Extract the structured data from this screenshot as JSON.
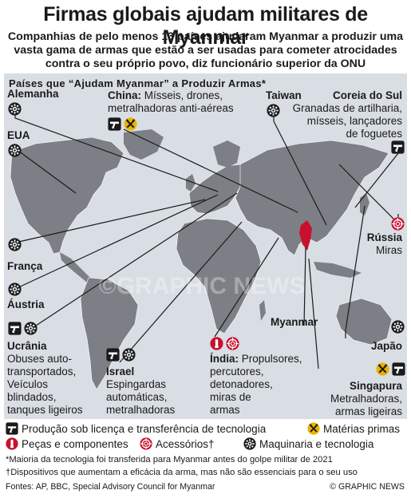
{
  "header": {
    "title": "Firmas globais ajudam militares de Myanmar",
    "subtitle": "Companhias de pelo menos 13 países ajudaram Myanmar a produzir uma vasta gama de armas que estão a ser usadas para cometer atrocidades contra o seu próprio povo, diz funcionário superior da ONU"
  },
  "map": {
    "heading": "Países que “Ajudam Myanmar” a Produzir Armas*",
    "watermark": "©GRAPHIC NEWS",
    "colors": {
      "land": "#7c7f85",
      "sea": "#d9dde4",
      "lines": "#1a1a1a",
      "myanmar": "#c8102e",
      "ammo": "#c8102e",
      "raw": "#e8b400"
    },
    "countries": [
      {
        "id": "alemanha",
        "name": "Alemanha",
        "detail": [],
        "icons": [
          "machinery-icon"
        ]
      },
      {
        "id": "eua",
        "name": "EUA",
        "detail": [],
        "icons": [
          "machinery-icon"
        ]
      },
      {
        "id": "franca",
        "name": "França",
        "detail": [],
        "icons": [
          "machinery-icon"
        ]
      },
      {
        "id": "austria",
        "name": "Áustria",
        "detail": [],
        "icons": [
          "machinery-icon"
        ]
      },
      {
        "id": "ucrania",
        "name": "Ucrânia",
        "detail": [
          "Obuses auto-",
          "transportados,",
          "Veículos",
          "blindados,",
          "tanques ligeiros"
        ],
        "icons": [
          "licensed-production-icon",
          "machinery-icon"
        ]
      },
      {
        "id": "israel",
        "name": "Israel",
        "detail": [
          "Espingardas",
          "automáticas,",
          "metralhadoras"
        ],
        "icons": [
          "licensed-production-icon",
          "machinery-icon"
        ]
      },
      {
        "id": "china",
        "name": "China:",
        "detail_inline": "Mísseis, drones,",
        "detail": [
          "metralhadoras anti-aéreas"
        ],
        "icons": [
          "licensed-production-icon",
          "raw-materials-icon"
        ]
      },
      {
        "id": "taiwan",
        "name": "Taiwan",
        "detail": [],
        "icons": [
          "machinery-icon"
        ]
      },
      {
        "id": "coreia",
        "name": "Coreia do Sul",
        "detail": [
          "Granadas de artilharia,",
          "mísseis, lançadores",
          "de foguetes"
        ],
        "icons": [
          "licensed-production-icon"
        ]
      },
      {
        "id": "russia",
        "name": "Rússia",
        "detail": [
          "Miras"
        ],
        "icons": [
          "accessories-icon"
        ]
      },
      {
        "id": "myanmar",
        "name": "Myanmar",
        "detail": [],
        "icons": []
      },
      {
        "id": "india",
        "name": "Índia:",
        "detail_inline": "Propulsores,",
        "detail": [
          "percutores,",
          "detonadores,",
          "miras de",
          "armas"
        ],
        "icons": [
          "parts-icon",
          "accessories-icon"
        ]
      },
      {
        "id": "japao",
        "name": "Japão",
        "detail": [],
        "icons": [
          "machinery-icon"
        ]
      },
      {
        "id": "singapura",
        "name": "Singapura",
        "detail": [
          "Metralhadoras,",
          "armas ligeiras"
        ],
        "icons": [
          "raw-materials-icon",
          "licensed-production-icon"
        ]
      }
    ]
  },
  "legend": {
    "items": [
      {
        "icon": "licensed-production-icon",
        "label": "Produção sob licença e transferência de tecnologia"
      },
      {
        "icon": "raw-materials-icon",
        "label": "Matérias primas"
      },
      {
        "icon": "parts-icon",
        "label": "Peças e componentes"
      },
      {
        "icon": "accessories-icon",
        "label": "Acessórios†"
      },
      {
        "icon": "machinery-icon",
        "label": "Maquinaria e tecnologia"
      }
    ]
  },
  "notes": {
    "note1": "*Maioria da tecnologia foi transferida para Myanmar antes do golpe militar de 2021",
    "note2": "†Dispositivos que aumentam a eficácia da arma, mas não são essenciais para o seu uso",
    "sources": "Fontes: AP, BBC, Special Advisory Council for Myanmar",
    "credit": "© GRAPHIC NEWS"
  }
}
